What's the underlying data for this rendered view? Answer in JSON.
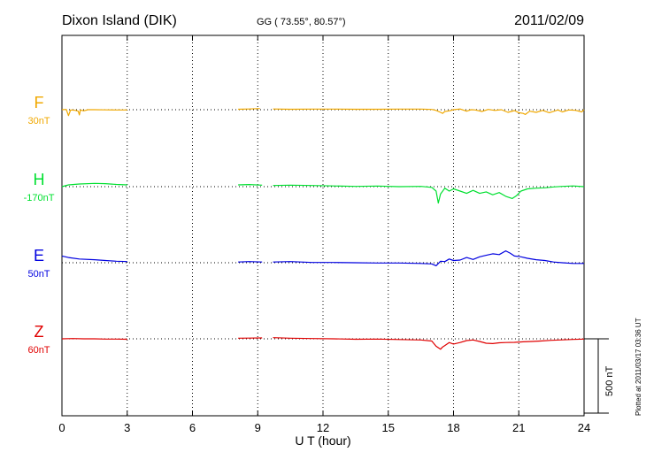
{
  "chart_data": {
    "type": "line",
    "title": "Dixon Island (DIK)",
    "coords": "GG ( 73.55°,  80.57°)",
    "date": "2011/02/09",
    "xlabel": "U T (hour)",
    "xlim": [
      0,
      24
    ],
    "xticks": [
      "0",
      "3",
      "6",
      "9",
      "12",
      "15",
      "18",
      "21",
      "24"
    ],
    "scale_label": "500 nT",
    "scale_nT": 500,
    "plotted_note": "Plotted at 2011/03/17 03:36 UT",
    "grid": true,
    "series": [
      {
        "name": "F",
        "baseline_label": "30nT",
        "baseline": 30,
        "color": "#f0a800",
        "segments": [
          [
            [
              0,
              30
            ],
            [
              0.2,
              32
            ],
            [
              0.3,
              -10
            ],
            [
              0.4,
              28
            ],
            [
              0.6,
              26
            ],
            [
              0.75,
              20
            ],
            [
              0.8,
              -5
            ],
            [
              0.85,
              28
            ],
            [
              1.0,
              22
            ],
            [
              1.2,
              30
            ],
            [
              1.5,
              30
            ],
            [
              2.0,
              29
            ],
            [
              2.5,
              28
            ],
            [
              3.0,
              28
            ]
          ],
          [
            [
              8.1,
              33
            ],
            [
              8.6,
              35
            ],
            [
              9.1,
              38
            ]
          ],
          [
            [
              9.7,
              35
            ],
            [
              10.5,
              33
            ],
            [
              11.5,
              34
            ],
            [
              12.5,
              34
            ],
            [
              13.5,
              33
            ],
            [
              14.5,
              33
            ],
            [
              15.5,
              34
            ],
            [
              16.5,
              34
            ],
            [
              17.0,
              32
            ],
            [
              17.2,
              25
            ],
            [
              17.4,
              12
            ],
            [
              17.5,
              5
            ],
            [
              17.6,
              18
            ],
            [
              17.8,
              22
            ],
            [
              18.0,
              30
            ],
            [
              18.3,
              35
            ],
            [
              18.6,
              20
            ],
            [
              18.8,
              30
            ],
            [
              19.0,
              28
            ],
            [
              19.3,
              18
            ],
            [
              19.6,
              32
            ],
            [
              19.9,
              25
            ],
            [
              20.2,
              30
            ],
            [
              20.5,
              12
            ],
            [
              20.8,
              24
            ],
            [
              21.0,
              10
            ],
            [
              21.2,
              5
            ],
            [
              21.3,
              -2
            ],
            [
              21.5,
              20
            ],
            [
              21.8,
              12
            ],
            [
              22.1,
              25
            ],
            [
              22.4,
              10
            ],
            [
              22.8,
              28
            ],
            [
              23.0,
              15
            ],
            [
              23.3,
              28
            ],
            [
              23.6,
              26
            ],
            [
              23.9,
              15
            ],
            [
              24.0,
              30
            ]
          ]
        ]
      },
      {
        "name": "H",
        "baseline_label": "-170nT",
        "baseline": -170,
        "color": "#00e030",
        "segments": [
          [
            [
              0,
              -170
            ],
            [
              0.3,
              -158
            ],
            [
              0.8,
              -152
            ],
            [
              1.5,
              -148
            ],
            [
              2.0,
              -150
            ],
            [
              2.5,
              -155
            ],
            [
              3.0,
              -158
            ]
          ],
          [
            [
              8.1,
              -158
            ],
            [
              8.6,
              -156
            ],
            [
              9.2,
              -160
            ]
          ],
          [
            [
              9.7,
              -162
            ],
            [
              10.5,
              -160
            ],
            [
              11.5,
              -162
            ],
            [
              12.5,
              -165
            ],
            [
              13.5,
              -168
            ],
            [
              14.5,
              -166
            ],
            [
              15.5,
              -170
            ],
            [
              16.5,
              -168
            ],
            [
              17.0,
              -175
            ],
            [
              17.2,
              -200
            ],
            [
              17.3,
              -280
            ],
            [
              17.4,
              -220
            ],
            [
              17.6,
              -180
            ],
            [
              17.8,
              -200
            ],
            [
              18.0,
              -185
            ],
            [
              18.3,
              -200
            ],
            [
              18.6,
              -215
            ],
            [
              18.9,
              -195
            ],
            [
              19.2,
              -215
            ],
            [
              19.5,
              -205
            ],
            [
              19.8,
              -225
            ],
            [
              20.1,
              -210
            ],
            [
              20.4,
              -235
            ],
            [
              20.7,
              -250
            ],
            [
              20.9,
              -230
            ],
            [
              21.1,
              -200
            ],
            [
              21.4,
              -185
            ],
            [
              21.8,
              -180
            ],
            [
              22.2,
              -178
            ],
            [
              22.6,
              -172
            ],
            [
              23.0,
              -168
            ],
            [
              23.5,
              -165
            ],
            [
              24.0,
              -170
            ]
          ]
        ]
      },
      {
        "name": "E",
        "baseline_label": "50nT",
        "baseline": 50,
        "color": "#0000e0",
        "segments": [
          [
            [
              0,
              95
            ],
            [
              0.3,
              85
            ],
            [
              0.8,
              75
            ],
            [
              1.5,
              70
            ],
            [
              2.0,
              65
            ],
            [
              2.5,
              60
            ],
            [
              3.0,
              58
            ]
          ],
          [
            [
              8.1,
              55
            ],
            [
              8.6,
              58
            ],
            [
              9.2,
              55
            ]
          ],
          [
            [
              9.7,
              55
            ],
            [
              10.5,
              58
            ],
            [
              11.5,
              52
            ],
            [
              12.5,
              52
            ],
            [
              13.5,
              50
            ],
            [
              14.5,
              48
            ],
            [
              15.5,
              48
            ],
            [
              16.5,
              45
            ],
            [
              17.0,
              42
            ],
            [
              17.2,
              30
            ],
            [
              17.4,
              60
            ],
            [
              17.6,
              58
            ],
            [
              17.8,
              75
            ],
            [
              18.0,
              65
            ],
            [
              18.3,
              68
            ],
            [
              18.6,
              85
            ],
            [
              18.9,
              72
            ],
            [
              19.2,
              90
            ],
            [
              19.5,
              100
            ],
            [
              19.8,
              110
            ],
            [
              20.1,
              105
            ],
            [
              20.4,
              130
            ],
            [
              20.6,
              115
            ],
            [
              20.8,
              95
            ],
            [
              21.1,
              90
            ],
            [
              21.4,
              80
            ],
            [
              21.8,
              70
            ],
            [
              22.2,
              65
            ],
            [
              22.6,
              55
            ],
            [
              23.0,
              50
            ],
            [
              23.5,
              45
            ],
            [
              24.0,
              45
            ]
          ]
        ]
      },
      {
        "name": "Z",
        "baseline_label": "60nT",
        "baseline": 60,
        "color": "#e00000",
        "segments": [
          [
            [
              0,
              60
            ],
            [
              0.5,
              62
            ],
            [
              1.0,
              60
            ],
            [
              1.5,
              60
            ],
            [
              2.0,
              58
            ],
            [
              2.5,
              58
            ],
            [
              3.0,
              57
            ]
          ],
          [
            [
              8.1,
              64
            ],
            [
              8.6,
              65
            ],
            [
              9.2,
              66
            ]
          ],
          [
            [
              9.7,
              68
            ],
            [
              10.5,
              64
            ],
            [
              11.5,
              62
            ],
            [
              12.5,
              60
            ],
            [
              13.5,
              57
            ],
            [
              14.5,
              58
            ],
            [
              15.5,
              55
            ],
            [
              16.5,
              52
            ],
            [
              17.0,
              45
            ],
            [
              17.2,
              10
            ],
            [
              17.4,
              -10
            ],
            [
              17.5,
              5
            ],
            [
              17.6,
              15
            ],
            [
              17.8,
              35
            ],
            [
              18.0,
              25
            ],
            [
              18.3,
              35
            ],
            [
              18.6,
              48
            ],
            [
              18.9,
              52
            ],
            [
              19.2,
              42
            ],
            [
              19.5,
              30
            ],
            [
              19.8,
              28
            ],
            [
              20.1,
              33
            ],
            [
              20.4,
              35
            ],
            [
              20.8,
              36
            ],
            [
              21.2,
              40
            ],
            [
              21.6,
              42
            ],
            [
              22.0,
              45
            ],
            [
              22.5,
              50
            ],
            [
              23.0,
              53
            ],
            [
              23.5,
              56
            ],
            [
              24.0,
              58
            ]
          ]
        ]
      }
    ]
  }
}
